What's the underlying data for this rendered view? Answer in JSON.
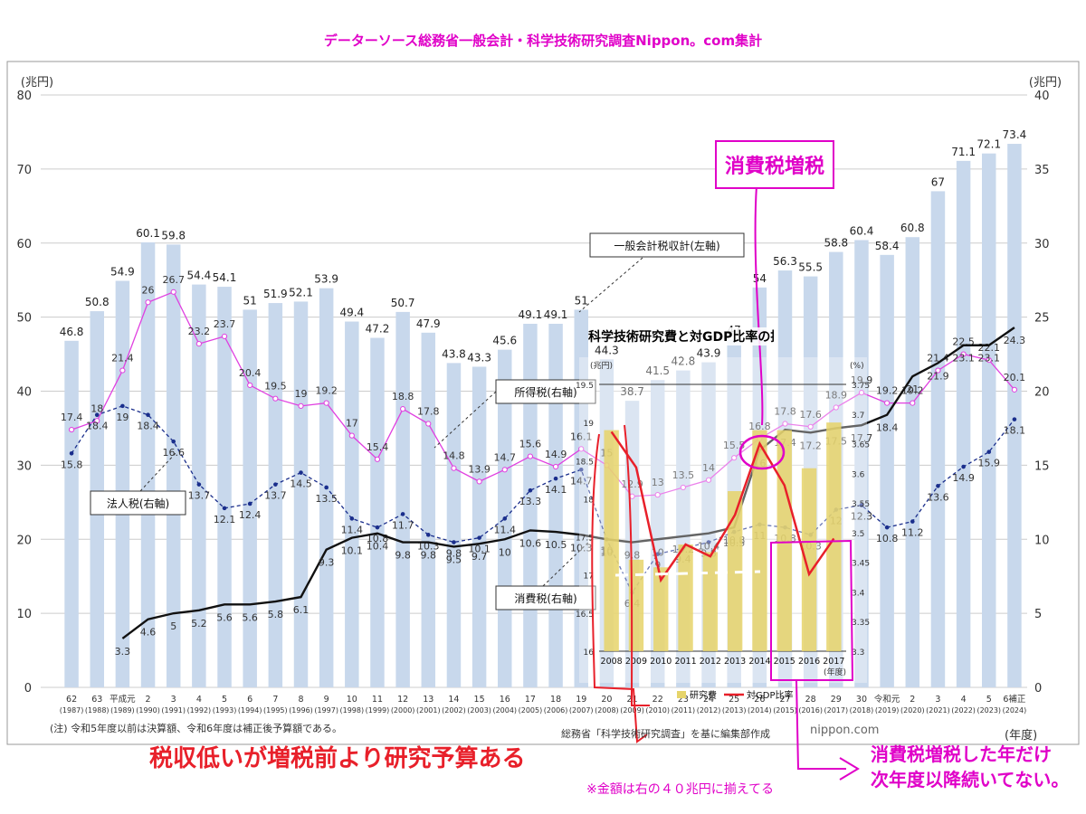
{
  "header": {
    "title": "データーソース総務省一般会計・科学技術研究調査Nippon。com集計"
  },
  "chart_data": {
    "type": "bar",
    "left_axis_unit": "(兆円)",
    "right_axis_unit": "(兆円)",
    "xlabel": "(年度)",
    "left_ylim": [
      0,
      80
    ],
    "right_ylim": [
      0,
      40
    ],
    "left_ticks": [
      "0",
      "10",
      "20",
      "30",
      "40",
      "50",
      "60",
      "70",
      "80"
    ],
    "right_ticks": [
      "0",
      "5",
      "10",
      "15",
      "20",
      "25",
      "30",
      "35",
      "40"
    ],
    "categories": [
      "62",
      "63",
      "平成元",
      "2",
      "3",
      "4",
      "5",
      "6",
      "7",
      "8",
      "9",
      "10",
      "11",
      "12",
      "13",
      "14",
      "15",
      "16",
      "17",
      "18",
      "19",
      "20",
      "21",
      "22",
      "23",
      "24",
      "25",
      "26",
      "27",
      "28",
      "29",
      "30",
      "令和元",
      "2",
      "3",
      "4",
      "5",
      "6補正"
    ],
    "years": [
      "(1987)",
      "(1988)",
      "(1989)",
      "(1990)",
      "(1991)",
      "(1992)",
      "(1993)",
      "(1994)",
      "(1995)",
      "(1996)",
      "(1997)",
      "(1998)",
      "(1999)",
      "(2000)",
      "(2001)",
      "(2002)",
      "(2003)",
      "(2004)",
      "(2005)",
      "(2006)",
      "(2007)",
      "(2008)",
      "(2009)",
      "(2010)",
      "(2011)",
      "(2012)",
      "(2013)",
      "(2014)",
      "(2015)",
      "(2016)",
      "(2017)",
      "(2018)",
      "(2019)",
      "(2020)",
      "(2021)",
      "(2022)",
      "(2023)",
      "(2024)"
    ],
    "series": [
      {
        "name": "一般会計税収計(左軸)",
        "axis": "left",
        "values": [
          46.8,
          50.8,
          54.9,
          60.1,
          59.8,
          54.4,
          54.1,
          51.0,
          51.9,
          52.1,
          53.9,
          49.4,
          47.2,
          50.7,
          47.9,
          43.8,
          43.3,
          45.6,
          49.1,
          49.1,
          51.0,
          44.3,
          38.7,
          41.5,
          42.8,
          43.9,
          47.0,
          54.0,
          56.3,
          55.5,
          58.8,
          60.4,
          58.4,
          60.8,
          67.0,
          71.1,
          72.1,
          73.4
        ]
      },
      {
        "name": "所得税(右軸)",
        "axis": "right",
        "values": [
          17.4,
          18.0,
          21.4,
          26.0,
          26.7,
          23.2,
          23.7,
          20.4,
          19.5,
          19.0,
          19.2,
          17.0,
          15.4,
          18.8,
          17.8,
          14.8,
          13.9,
          14.7,
          15.6,
          14.9,
          16.1,
          15.0,
          12.9,
          13.0,
          13.5,
          14.0,
          15.5,
          16.8,
          17.8,
          17.6,
          18.9,
          19.9,
          19.2,
          19.2,
          21.4,
          22.5,
          22.1,
          20.1
        ]
      },
      {
        "name": "法人税(右軸)",
        "axis": "right",
        "values": [
          15.8,
          18.4,
          19.0,
          18.4,
          16.6,
          13.7,
          12.1,
          12.4,
          13.7,
          14.5,
          13.5,
          11.4,
          10.8,
          11.7,
          10.3,
          9.8,
          10.1,
          11.4,
          13.3,
          14.1,
          14.7,
          10.0,
          6.4,
          9.0,
          9.4,
          9.8,
          10.5,
          11.0,
          10.8,
          10.3,
          12.0,
          12.3,
          10.8,
          11.2,
          13.6,
          14.9,
          15.9,
          18.1
        ]
      },
      {
        "name": "消費税(右軸)",
        "axis": "right",
        "values": [
          null,
          null,
          3.3,
          4.6,
          5.0,
          5.2,
          5.6,
          5.6,
          5.8,
          6.1,
          9.3,
          10.1,
          10.4,
          9.8,
          9.8,
          9.5,
          9.7,
          10.0,
          10.6,
          10.5,
          10.3,
          10.0,
          9.8,
          10.0,
          10.2,
          10.4,
          10.8,
          16.0,
          17.4,
          17.2,
          17.5,
          17.7,
          18.4,
          21.0,
          21.9,
          23.1,
          23.1,
          24.3
        ]
      }
    ],
    "series_labels": {
      "total": "一般会計税収計(左軸)",
      "income": "所得税(右軸)",
      "corporate": "法人税(右軸)",
      "consumption": "消費税(右軸)"
    },
    "colors": {
      "bar": "#c8d8ec",
      "income": "#e040e0",
      "corporate": "#1a2e8c",
      "consumption": "#111111",
      "callout": "#e000c8",
      "red": "#e8202a"
    },
    "inset": {
      "title": "科学技術研究費と対GDP比率の推移",
      "type": "bar+line",
      "left_unit": "(兆円)",
      "right_unit": "(%)",
      "xlabel": "(年度)",
      "categories": [
        "2008",
        "2009",
        "2010",
        "2011",
        "2012",
        "2013",
        "2014",
        "2015",
        "2016",
        "2017"
      ],
      "left_ticks": [
        "16",
        "16.5",
        "17",
        "17.5",
        "18",
        "18.5",
        "19",
        "19.5"
      ],
      "right_ticks": [
        "3.3",
        "3.35",
        "3.4",
        "3.45",
        "3.5",
        "3.55",
        "3.6",
        "3.65",
        "3.7",
        "3.75"
      ],
      "series": [
        {
          "name": "研究費",
          "values": [
            18.9,
            17.2,
            17.1,
            17.4,
            17.3,
            18.1,
            18.9,
            18.9,
            18.4,
            19.0
          ]
        },
        {
          "name": "対GDP比率",
          "values": [
            3.67,
            3.61,
            3.42,
            3.48,
            3.46,
            3.53,
            3.65,
            3.58,
            3.43,
            3.49
          ]
        }
      ],
      "source": "総務省「科学技術研究調査」を基に編集部作成"
    }
  },
  "footnote": "(注) 令和5年度以前は決算額、令和6年度は補正後予算額である。",
  "credit": "nippon.com",
  "annotations": {
    "tax_increase": "消費税増税",
    "red_callout": "税収低いが増税前より研究予算ある",
    "note": "※金額は右の４０兆円に揃えてる",
    "mag_line1": "消費税増税した年だけ",
    "mag_line2": "次年度以降続いてない。"
  }
}
